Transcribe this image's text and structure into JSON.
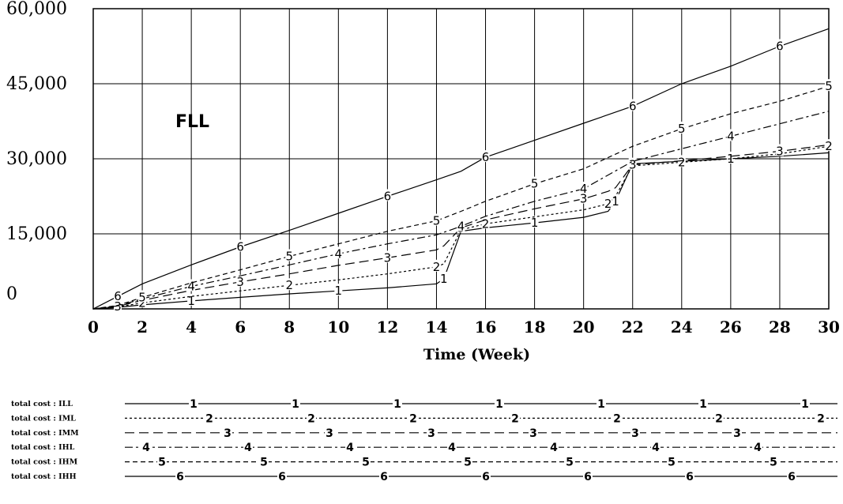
{
  "chart_data": {
    "type": "line",
    "xlabel": "Time (Week)",
    "ylabel": "",
    "xlim": [
      0,
      30
    ],
    "ylim": [
      0,
      60000
    ],
    "x_ticks": [
      "0",
      "2",
      "4",
      "6",
      "8",
      "10",
      "12",
      "14",
      "16",
      "18",
      "20",
      "22",
      "24",
      "26",
      "28",
      "30"
    ],
    "y_ticks": [
      "0",
      "15,000",
      "30,000",
      "45,000",
      "60,000"
    ],
    "grid": true,
    "annotation": "FLL",
    "legend_position": "bottom",
    "series": [
      {
        "name": "total cost : ILL",
        "marker": "1",
        "dash": "",
        "x": [
          0,
          1,
          2,
          4,
          6,
          8,
          10,
          12,
          14,
          14.3,
          15,
          16,
          18,
          20,
          21,
          21.3,
          22,
          24,
          26,
          28,
          30
        ],
        "y": [
          0,
          300,
          800,
          1600,
          2300,
          3000,
          3600,
          4200,
          5000,
          6000,
          15500,
          16200,
          17200,
          18300,
          19500,
          21500,
          29000,
          29500,
          30000,
          30500,
          31200
        ]
      },
      {
        "name": "total cost : IML",
        "marker": "2",
        "dash": "3,3",
        "x": [
          0,
          1,
          2,
          4,
          6,
          8,
          10,
          12,
          14,
          14.3,
          15,
          16,
          18,
          20,
          21,
          21.3,
          22,
          24,
          26,
          28,
          30
        ],
        "y": [
          0,
          400,
          1200,
          2500,
          3600,
          4700,
          5800,
          7000,
          8400,
          9000,
          15800,
          17000,
          18400,
          19800,
          21000,
          22500,
          28600,
          29300,
          30000,
          31000,
          32500
        ]
      },
      {
        "name": "total cost : IMM",
        "marker": "3",
        "dash": "12,6",
        "x": [
          0,
          1,
          2,
          4,
          6,
          8,
          10,
          12,
          14,
          14.3,
          15,
          16,
          18,
          20,
          21,
          21.3,
          22,
          24,
          26,
          28,
          30
        ],
        "y": [
          0,
          500,
          1700,
          3700,
          5400,
          7000,
          8700,
          10200,
          11800,
          12600,
          16200,
          17800,
          20000,
          22000,
          23500,
          24200,
          28800,
          29600,
          30500,
          31500,
          32800
        ]
      },
      {
        "name": "total cost : IHL",
        "marker": "4",
        "dash": "10,4,3,4",
        "x": [
          0,
          1,
          2,
          4,
          6,
          8,
          10,
          12,
          14,
          15,
          16,
          18,
          20,
          22,
          24,
          26,
          28,
          30
        ],
        "y": [
          0,
          600,
          2000,
          4500,
          6600,
          8800,
          11000,
          13000,
          14800,
          16500,
          18500,
          21500,
          24000,
          29500,
          32000,
          34500,
          37000,
          39500
        ]
      },
      {
        "name": "total cost : IHM",
        "marker": "5",
        "dash": "6,4",
        "x": [
          0,
          1,
          2,
          4,
          6,
          8,
          10,
          12,
          14,
          15,
          16,
          18,
          20,
          22,
          24,
          26,
          28,
          30
        ],
        "y": [
          0,
          700,
          2300,
          5200,
          7800,
          10500,
          13000,
          15500,
          17600,
          19500,
          21500,
          25000,
          28000,
          32500,
          36000,
          39000,
          41500,
          44500
        ]
      },
      {
        "name": "total cost : IHH",
        "marker": "6",
        "dash": "",
        "x": [
          0,
          1,
          2,
          4,
          6,
          8,
          10,
          12,
          14,
          15,
          16,
          18,
          20,
          22,
          24,
          26,
          28,
          30
        ],
        "y": [
          0,
          2500,
          5000,
          8800,
          12400,
          15700,
          19100,
          22500,
          25800,
          27500,
          30300,
          33700,
          37100,
          40500,
          45000,
          48500,
          52500,
          56000
        ]
      }
    ]
  }
}
